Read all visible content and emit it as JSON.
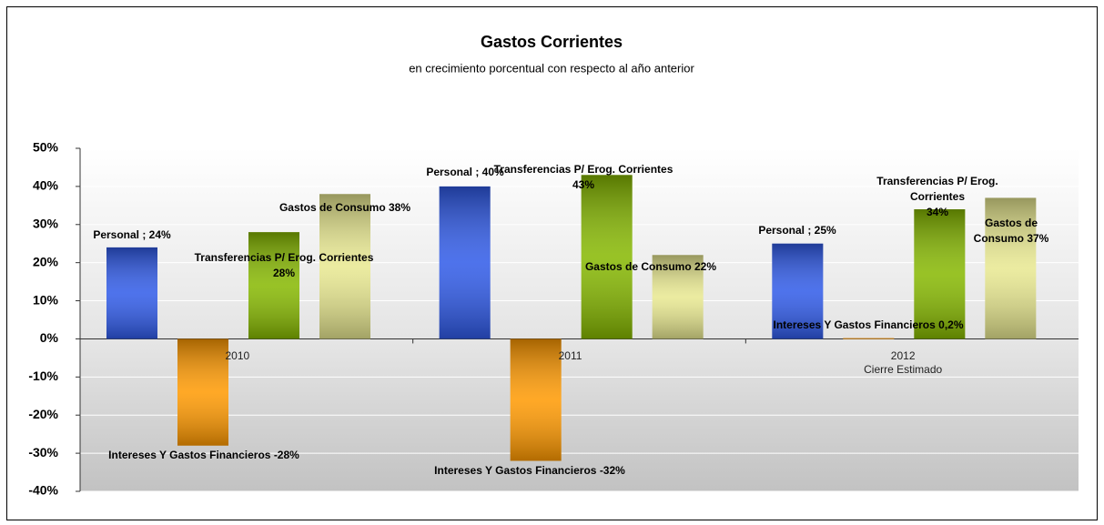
{
  "chart_data": {
    "type": "bar",
    "title": "Gastos Corrientes",
    "subtitle": "en crecimiento porcentual con respecto al año anterior",
    "categories": [
      "2010",
      "2011",
      "2012\nCierre Estimado"
    ],
    "series": [
      {
        "name": "Personal",
        "color": "#2f5ae8",
        "values": [
          24,
          40,
          25
        ],
        "value_labels": [
          "Personal ; 24%",
          "Personal ; 40%",
          "Personal ; 25%"
        ]
      },
      {
        "name": "Intereses Y Gastos Financieros",
        "color": "#ff9900",
        "values": [
          -28,
          -32,
          0.2
        ],
        "value_labels": [
          "Intereses Y Gastos Financieros  -28%",
          "Intereses Y Gastos Financieros  -32%",
          "Intereses Y Gastos Financieros  0,2%"
        ]
      },
      {
        "name": "Transferencias P/ Erog. Corrientes",
        "color": "#86b800",
        "values": [
          28,
          43,
          34
        ],
        "value_labels": [
          "Transferencias P/ Erog. Corrientes\n28%",
          "Transferencias P/ Erog. Corrientes\n43%",
          "Transferencias P/ Erog. Corrientes\n34%"
        ]
      },
      {
        "name": "Gastos de Consumo",
        "color": "#e8e890",
        "values": [
          38,
          22,
          37
        ],
        "value_labels": [
          "Gastos de Consumo 38%",
          "Gastos de Consumo 22%",
          "Gastos de Consumo 37%"
        ]
      }
    ],
    "ylim": [
      -40,
      50
    ],
    "yticks": [
      {
        "value": -40,
        "label": "-40%"
      },
      {
        "value": -30,
        "label": "-30%"
      },
      {
        "value": -20,
        "label": "-20%"
      },
      {
        "value": -10,
        "label": "-10%"
      },
      {
        "value": 0,
        "label": "0%"
      },
      {
        "value": 10,
        "label": "10%"
      },
      {
        "value": 20,
        "label": "20%"
      },
      {
        "value": 30,
        "label": "30%"
      },
      {
        "value": 40,
        "label": "40%"
      },
      {
        "value": 50,
        "label": "50%"
      }
    ],
    "grid": true
  }
}
